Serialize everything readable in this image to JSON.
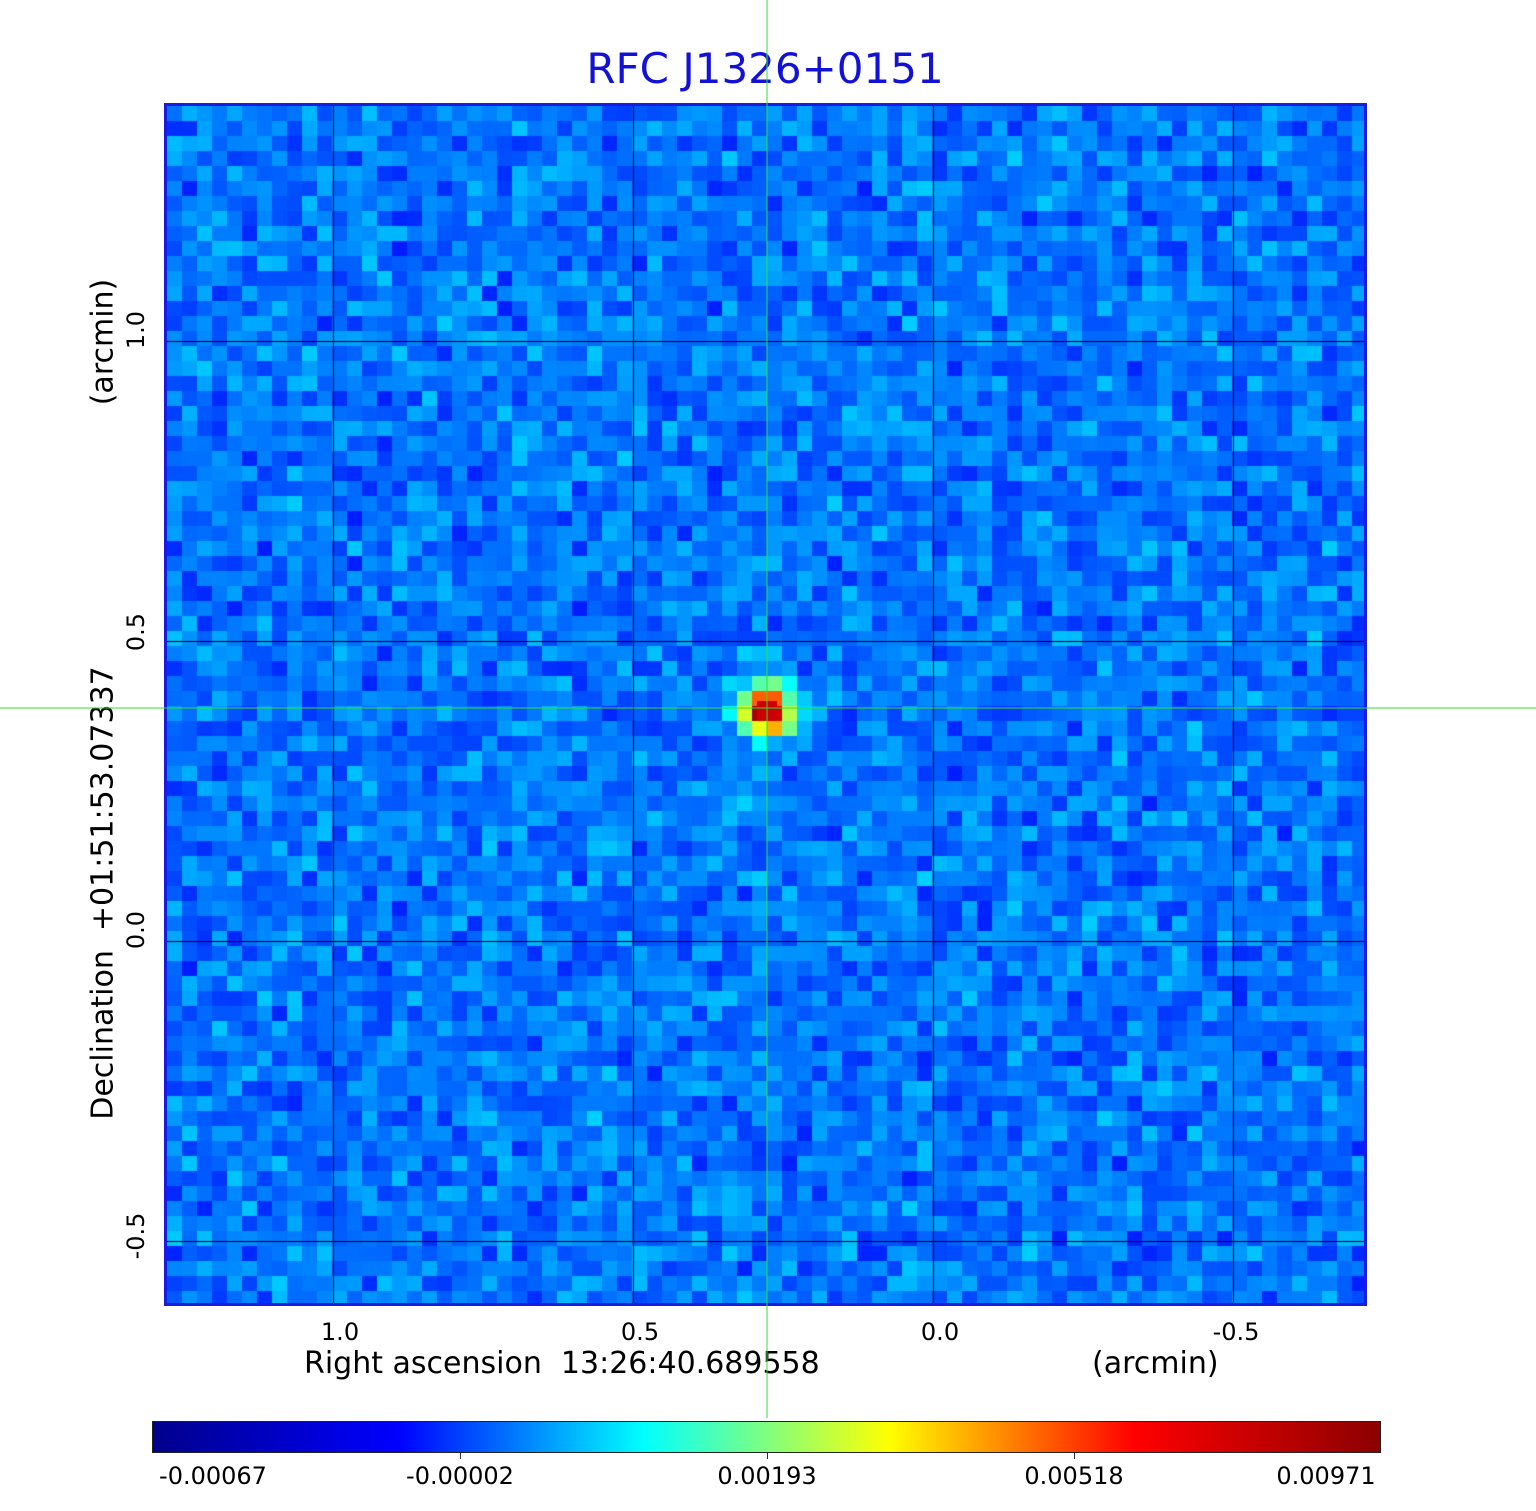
{
  "title": "RFC J1326+0151",
  "x_axis": {
    "label": "Right ascension  13:26:40.689558",
    "unit": "(arcmin)",
    "ticks": [
      "1.0",
      "0.5",
      "0.0",
      "-0.5"
    ]
  },
  "y_axis": {
    "label": "Declination  +01:51:53.07337",
    "unit": "(arcmin)",
    "ticks": [
      "1.0",
      "0.5",
      "0.0",
      "-0.5"
    ]
  },
  "colorbar": {
    "ticks": [
      "-0.00067",
      "-0.00002",
      "0.00193",
      "0.00518",
      "0.00971"
    ],
    "colormap": "jet",
    "colors": [
      "#00008c",
      "#0000ff",
      "#00ffff",
      "#ffff00",
      "#ff0000",
      "#8c0000"
    ]
  },
  "image": {
    "colormap": "jet",
    "background_color": "#1e90ff",
    "source_peak_color": "#cc0000"
  },
  "grid_color": "#000000",
  "crosshair_color": "#33dd33"
}
